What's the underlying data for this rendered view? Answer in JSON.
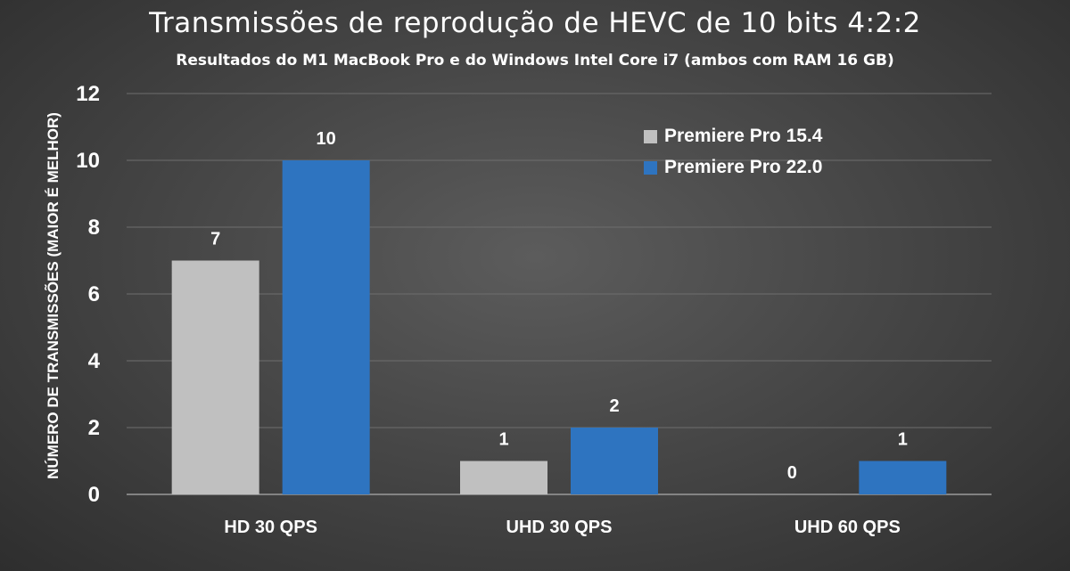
{
  "chart_data": {
    "type": "bar",
    "title": "Transmissões de reprodução de HEVC de 10 bits 4:2:2",
    "subtitle": "Resultados do M1 MacBook Pro e do Windows Intel Core i7 (ambos com RAM 16 GB)",
    "xlabel": "",
    "ylabel": "NÚMERO DE TRANSMISSÕES (MAIOR É MELHOR)",
    "categories": [
      "HD 30 QPS",
      "UHD 30 QPS",
      "UHD 60 QPS"
    ],
    "series": [
      {
        "name": "Premiere Pro 15.4",
        "values": [
          7,
          1,
          0
        ],
        "color": "#c0c0c0"
      },
      {
        "name": "Premiere Pro 22.0",
        "values": [
          10,
          2,
          1
        ],
        "color": "#2e74c0"
      }
    ],
    "ylim": [
      0,
      12
    ],
    "yticks": [
      0,
      2,
      4,
      6,
      8,
      10,
      12
    ],
    "grid": true,
    "legend": "top-right",
    "data_labels": true
  }
}
